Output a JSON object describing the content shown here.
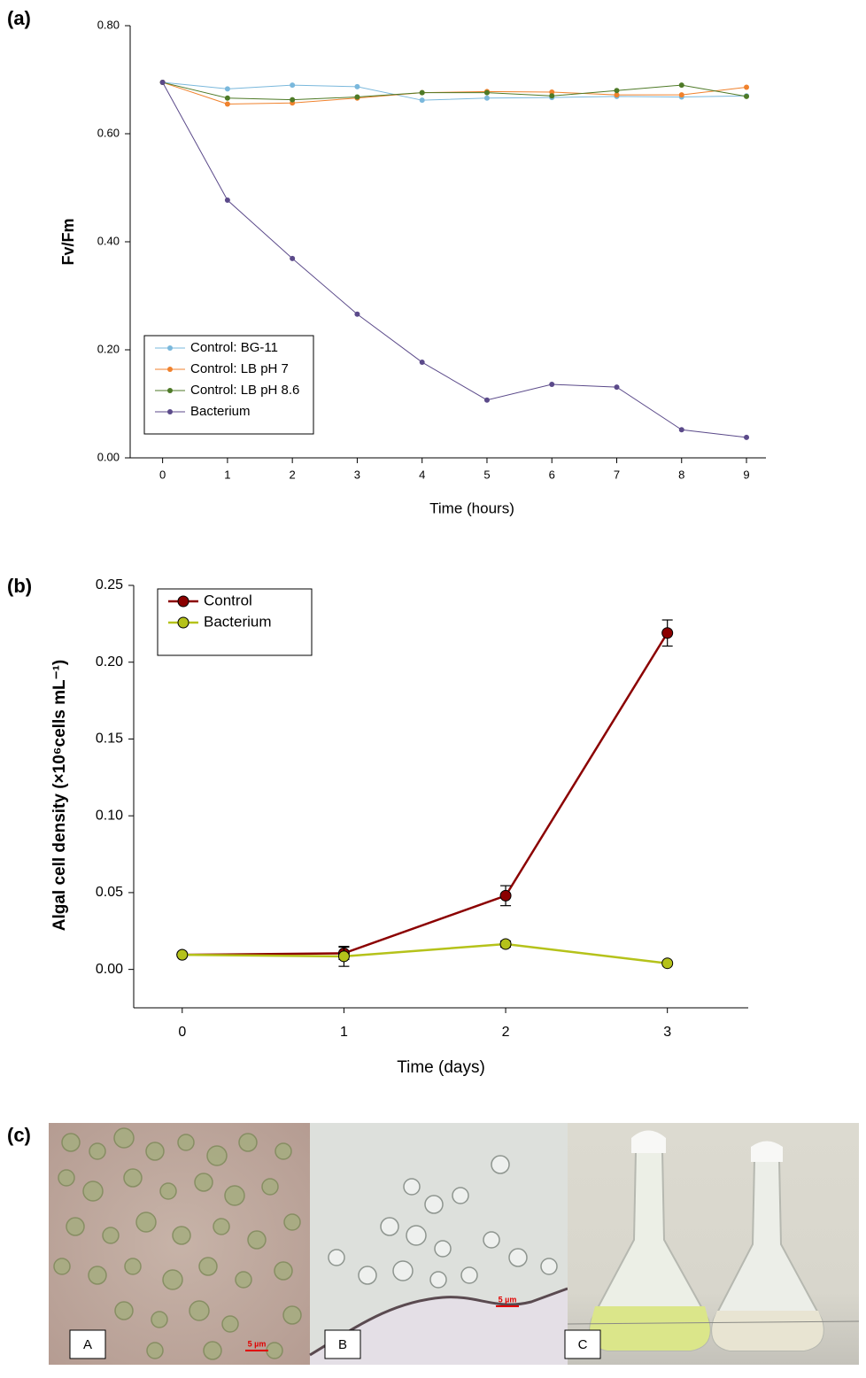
{
  "chart_data": [
    {
      "type": "line",
      "panel_label": "(a)",
      "y_label": "Fv/Fm",
      "x_label": "Time (hours)",
      "x": [
        0,
        1,
        2,
        3,
        4,
        5,
        6,
        7,
        8,
        9
      ],
      "xlim": [
        -0.5,
        9.3
      ],
      "xticks": [
        0,
        1,
        2,
        3,
        4,
        5,
        6,
        7,
        8,
        9
      ],
      "ylim": [
        0,
        0.8
      ],
      "yticks": [
        {
          "value": 0,
          "label": "0.00"
        },
        {
          "value": 0.2,
          "label": "0.20"
        },
        {
          "value": 0.4,
          "label": "0.40"
        },
        {
          "value": 0.6,
          "label": "0.60"
        },
        {
          "value": 0.8,
          "label": "0.80"
        }
      ],
      "legend": "lower left",
      "series": [
        {
          "name": "Control: BG-11",
          "color": "#7ab8dc",
          "values": [
            0.695,
            0.683,
            0.69,
            0.687,
            0.662,
            0.666,
            0.667,
            0.669,
            0.668,
            0.67
          ]
        },
        {
          "name": "Control: LB pH 7",
          "color": "#f0822d",
          "values": [
            0.695,
            0.655,
            0.657,
            0.666,
            0.676,
            0.678,
            0.677,
            0.672,
            0.672,
            0.686
          ]
        },
        {
          "name": "Control: LB pH 8.6",
          "color": "#4e7a27",
          "values": [
            0.695,
            0.666,
            0.663,
            0.668,
            0.676,
            0.676,
            0.67,
            0.68,
            0.69,
            0.669
          ]
        },
        {
          "name": "Bacterium",
          "color": "#5b4a8a",
          "values": [
            0.695,
            0.477,
            0.369,
            0.266,
            0.177,
            0.107,
            0.136,
            0.131,
            0.052,
            0.038
          ]
        }
      ]
    },
    {
      "type": "line",
      "panel_label": "(b)",
      "y_label": "Algal cell density (×10⁶cells mL⁻¹)",
      "x_label": "Time (days)",
      "x": [
        0,
        1,
        2,
        3
      ],
      "xlim": [
        -0.3,
        3.5
      ],
      "xticks": [
        0,
        1,
        2,
        3
      ],
      "ylim": [
        -0.025,
        0.25
      ],
      "yticks": [
        {
          "value": 0,
          "label": "0.00"
        },
        0.05,
        {
          "value": 0.1,
          "label": "0.10"
        },
        0.15,
        {
          "value": 0.2,
          "label": "0.20"
        },
        0.25
      ],
      "legend": "upper left",
      "series": [
        {
          "name": "Control",
          "color": "#8b0000",
          "values": [
            0.0095,
            0.0105,
            0.048,
            0.219
          ],
          "errors": [
            0.001,
            0.004,
            0.0065,
            0.0085
          ]
        },
        {
          "name": "Bacterium",
          "color": "#b5c21a",
          "values": [
            0.0095,
            0.0085,
            0.0165,
            0.004
          ],
          "errors": [
            0.001,
            0.0065,
            0.002,
            0.001
          ]
        }
      ]
    }
  ],
  "panel_c": {
    "panel_label": "(c)",
    "images": [
      {
        "label": "A",
        "scale": "5 µm"
      },
      {
        "label": "B",
        "scale": "5 µm"
      },
      {
        "label": "C"
      }
    ]
  }
}
